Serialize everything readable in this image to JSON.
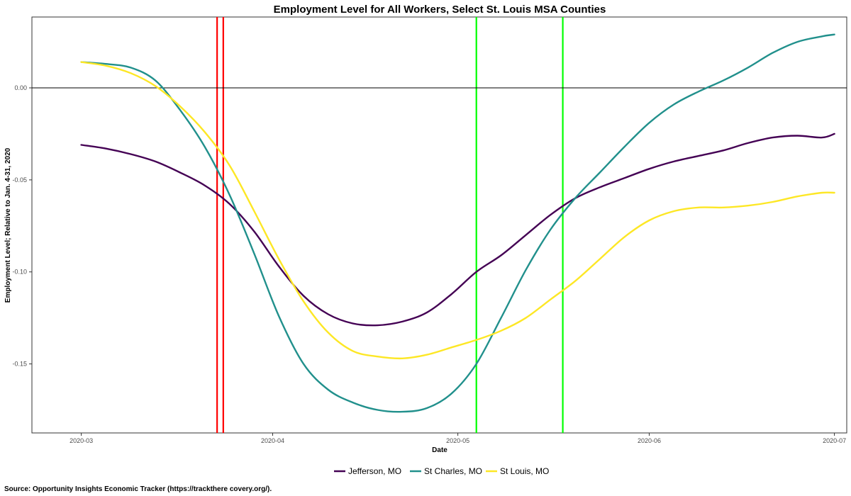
{
  "chart_data": {
    "type": "line",
    "title": "Employment Level for All Workers, Select St. Louis MSA Counties",
    "xlabel": "Date",
    "ylabel": "Employment Level; Relative to Jan. 4-31, 2020",
    "source": "Source: Opportunity Insights Economic Tracker (https://trackthere covery.org/).",
    "x_ticks": [
      "2020-03",
      "2020-04",
      "2020-05",
      "2020-06",
      "2020-07"
    ],
    "y_ticks": [
      "0.00",
      "-0.05",
      "-0.10",
      "-0.15"
    ],
    "xlim": [
      "2020-02-22",
      "2020-07-03"
    ],
    "ylim": [
      -0.1875,
      0.0385
    ],
    "y_tick_values": [
      0,
      -0.05,
      -0.1,
      -0.15
    ],
    "hline": 0,
    "vlines": [
      {
        "date": "2020-03-23",
        "color": "#ff0000"
      },
      {
        "date": "2020-03-24",
        "color": "#ff0000"
      },
      {
        "date": "2020-05-04",
        "color": "#00ff00"
      },
      {
        "date": "2020-05-18",
        "color": "#00ff00"
      }
    ],
    "grid": false,
    "legend_position": "bottom",
    "series": [
      {
        "name": "Jefferson, MO",
        "color": "#440154",
        "points": [
          [
            "2020-03-01",
            -0.031
          ],
          [
            "2020-03-05",
            -0.033
          ],
          [
            "2020-03-09",
            -0.036
          ],
          [
            "2020-03-13",
            -0.04
          ],
          [
            "2020-03-17",
            -0.046
          ],
          [
            "2020-03-21",
            -0.053
          ],
          [
            "2020-03-25",
            -0.063
          ],
          [
            "2020-03-29",
            -0.078
          ],
          [
            "2020-04-02",
            -0.097
          ],
          [
            "2020-04-06",
            -0.113
          ],
          [
            "2020-04-10",
            -0.123
          ],
          [
            "2020-04-14",
            -0.128
          ],
          [
            "2020-04-18",
            -0.129
          ],
          [
            "2020-04-22",
            -0.127
          ],
          [
            "2020-04-26",
            -0.122
          ],
          [
            "2020-04-30",
            -0.112
          ],
          [
            "2020-05-04",
            -0.1
          ],
          [
            "2020-05-08",
            -0.091
          ],
          [
            "2020-05-12",
            -0.08
          ],
          [
            "2020-05-16",
            -0.069
          ],
          [
            "2020-05-20",
            -0.06
          ],
          [
            "2020-05-24",
            -0.054
          ],
          [
            "2020-05-28",
            -0.049
          ],
          [
            "2020-06-01",
            -0.044
          ],
          [
            "2020-06-05",
            -0.04
          ],
          [
            "2020-06-09",
            -0.037
          ],
          [
            "2020-06-13",
            -0.034
          ],
          [
            "2020-06-17",
            -0.03
          ],
          [
            "2020-06-21",
            -0.027
          ],
          [
            "2020-06-25",
            -0.026
          ],
          [
            "2020-06-29",
            -0.027
          ],
          [
            "2020-07-01",
            -0.025
          ]
        ]
      },
      {
        "name": "St Charles, MO",
        "color": "#21908c",
        "points": [
          [
            "2020-03-01",
            0.014
          ],
          [
            "2020-03-05",
            0.013
          ],
          [
            "2020-03-09",
            0.011
          ],
          [
            "2020-03-13",
            0.004
          ],
          [
            "2020-03-17",
            -0.012
          ],
          [
            "2020-03-21",
            -0.032
          ],
          [
            "2020-03-25",
            -0.058
          ],
          [
            "2020-03-29",
            -0.09
          ],
          [
            "2020-04-02",
            -0.124
          ],
          [
            "2020-04-06",
            -0.15
          ],
          [
            "2020-04-10",
            -0.164
          ],
          [
            "2020-04-14",
            -0.171
          ],
          [
            "2020-04-18",
            -0.175
          ],
          [
            "2020-04-22",
            -0.176
          ],
          [
            "2020-04-26",
            -0.174
          ],
          [
            "2020-04-30",
            -0.166
          ],
          [
            "2020-05-04",
            -0.15
          ],
          [
            "2020-05-08",
            -0.125
          ],
          [
            "2020-05-12",
            -0.099
          ],
          [
            "2020-05-16",
            -0.077
          ],
          [
            "2020-05-20",
            -0.06
          ],
          [
            "2020-05-24",
            -0.046
          ],
          [
            "2020-05-28",
            -0.032
          ],
          [
            "2020-06-01",
            -0.019
          ],
          [
            "2020-06-05",
            -0.009
          ],
          [
            "2020-06-09",
            -0.002
          ],
          [
            "2020-06-13",
            0.004
          ],
          [
            "2020-06-17",
            0.011
          ],
          [
            "2020-06-21",
            0.019
          ],
          [
            "2020-06-25",
            0.025
          ],
          [
            "2020-06-29",
            0.028
          ],
          [
            "2020-07-01",
            0.029
          ]
        ]
      },
      {
        "name": "St Louis, MO",
        "color": "#fde725",
        "points": [
          [
            "2020-03-01",
            0.014
          ],
          [
            "2020-03-05",
            0.012
          ],
          [
            "2020-03-09",
            0.008
          ],
          [
            "2020-03-13",
            0.001
          ],
          [
            "2020-03-17",
            -0.01
          ],
          [
            "2020-03-21",
            -0.024
          ],
          [
            "2020-03-25",
            -0.042
          ],
          [
            "2020-03-29",
            -0.067
          ],
          [
            "2020-04-02",
            -0.093
          ],
          [
            "2020-04-06",
            -0.116
          ],
          [
            "2020-04-10",
            -0.133
          ],
          [
            "2020-04-14",
            -0.143
          ],
          [
            "2020-04-18",
            -0.146
          ],
          [
            "2020-04-22",
            -0.147
          ],
          [
            "2020-04-26",
            -0.145
          ],
          [
            "2020-04-30",
            -0.141
          ],
          [
            "2020-05-04",
            -0.137
          ],
          [
            "2020-05-08",
            -0.132
          ],
          [
            "2020-05-12",
            -0.125
          ],
          [
            "2020-05-16",
            -0.115
          ],
          [
            "2020-05-20",
            -0.105
          ],
          [
            "2020-05-24",
            -0.093
          ],
          [
            "2020-05-28",
            -0.081
          ],
          [
            "2020-06-01",
            -0.072
          ],
          [
            "2020-06-05",
            -0.067
          ],
          [
            "2020-06-09",
            -0.065
          ],
          [
            "2020-06-13",
            -0.065
          ],
          [
            "2020-06-17",
            -0.064
          ],
          [
            "2020-06-21",
            -0.062
          ],
          [
            "2020-06-25",
            -0.059
          ],
          [
            "2020-06-29",
            -0.057
          ],
          [
            "2020-07-01",
            -0.057
          ]
        ]
      }
    ]
  }
}
